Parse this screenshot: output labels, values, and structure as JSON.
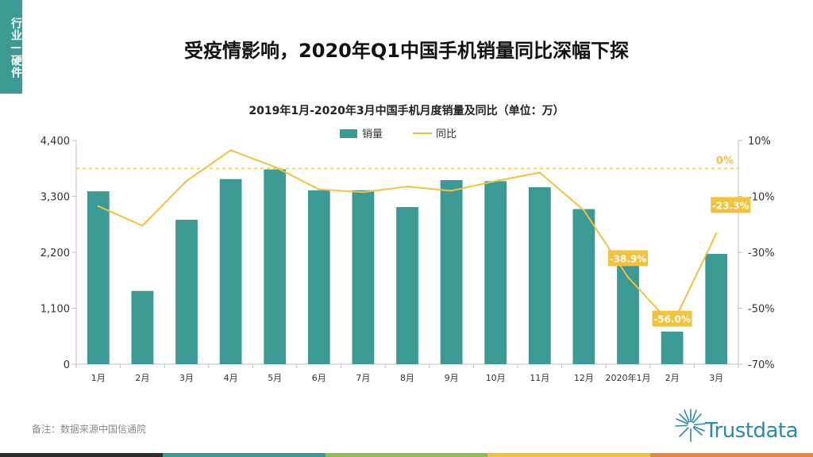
{
  "side_tag": "行业—硬件",
  "page_title": "受疫情影响，2020年Q1中国手机销量同比深幅下探",
  "footer_note": "备注：数据来源中国信通院",
  "logo_text": "Trustdata",
  "colors": {
    "bar": "#3b9a94",
    "line": "#f2c23c",
    "label_bg": "#f2c23c",
    "tag_bg": "#3b9a94",
    "bottom_bar": [
      "#2d2d2d",
      "#3b9a94",
      "#8bbf4a",
      "#f2c23c",
      "#e8873a"
    ]
  },
  "chart_data": {
    "type": "bar",
    "title": "2019年1月-2020年3月中国手机月度销量及同比（单位：万）",
    "categories": [
      "1月",
      "2月",
      "3月",
      "4月",
      "5月",
      "6月",
      "7月",
      "8月",
      "9月",
      "10月",
      "11月",
      "12月",
      "2020年1月",
      "2月",
      "3月"
    ],
    "series": [
      {
        "name": "销量",
        "type": "bar",
        "axis": "left",
        "values": [
          3400,
          1440,
          2840,
          3640,
          3830,
          3420,
          3420,
          3090,
          3620,
          3600,
          3480,
          3050,
          2080,
          640,
          2170
        ]
      },
      {
        "name": "同比",
        "type": "line",
        "axis": "right",
        "values": [
          -13.5,
          -20.5,
          -4.5,
          6.5,
          0.5,
          -7.5,
          -8.5,
          -6.5,
          -8,
          -4.5,
          -1.5,
          -15,
          -38.9,
          -56.0,
          -23.3
        ]
      }
    ],
    "left_axis": {
      "min": 0,
      "max": 4400,
      "ticks": [
        "0",
        "1,100",
        "2,200",
        "3,300",
        "4,400"
      ]
    },
    "right_axis": {
      "min": -70,
      "max": 10,
      "ticks": [
        "-70%",
        "-50%",
        "-30%",
        "-10%",
        "10%"
      ]
    },
    "reference_line": {
      "value": 0,
      "label": "0%"
    },
    "annotations": [
      {
        "index": 12,
        "text": "-38.9%"
      },
      {
        "index": 13,
        "text": "-56.0%"
      },
      {
        "index": 14,
        "text": "-23.3%"
      }
    ],
    "legend": [
      "销量",
      "同比"
    ]
  }
}
